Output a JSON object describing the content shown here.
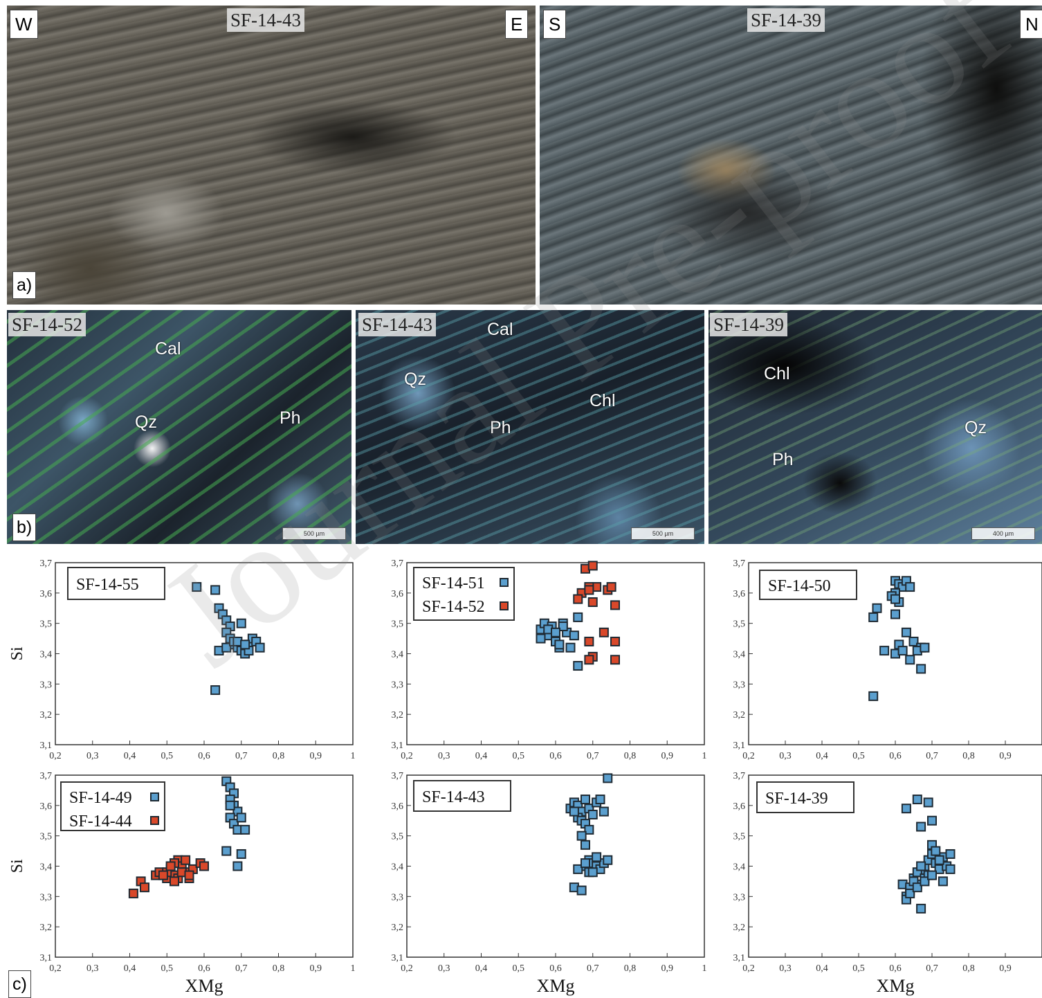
{
  "panel_a": {
    "letter": "a)",
    "left": {
      "sample": "SF-14-43",
      "west": "W",
      "east": "E"
    },
    "right": {
      "sample": "SF-14-39",
      "south": "S",
      "north": "N"
    }
  },
  "panel_b": {
    "letter": "b)",
    "sections": [
      {
        "sample": "SF-14-52",
        "minerals": [
          "Cal",
          "Qz",
          "Ph"
        ],
        "scale": "500 µm"
      },
      {
        "sample": "SF-14-43",
        "minerals": [
          "Cal",
          "Qz",
          "Ph",
          "Chl"
        ],
        "scale": "500 µm"
      },
      {
        "sample": "SF-14-39",
        "minerals": [
          "Chl",
          "Ph",
          "Qz"
        ],
        "scale": "400 µm"
      }
    ]
  },
  "panel_c": {
    "letter": "c)"
  },
  "watermark": "Journal Pre-proof",
  "colors": {
    "blue_marker": "#5b9fce",
    "red_marker": "#d9482a",
    "marker_edge": "#1f2a33"
  },
  "chart_data": [
    {
      "type": "scatter",
      "xlabel": "",
      "ylabel": "Si",
      "xlim": [
        0.2,
        1
      ],
      "ylim": [
        3.1,
        3.7
      ],
      "xticks": [
        "0,2",
        "0,3",
        "0,4",
        "0,5",
        "0,6",
        "0,7",
        "0,8",
        "0,9",
        "1"
      ],
      "yticks": [
        "3,1",
        "3,2",
        "3,3",
        "3,4",
        "3,5",
        "3,6",
        "3,7"
      ],
      "series": [
        {
          "name": "SF-14-55",
          "color": "blue",
          "x": [
            0.58,
            0.63,
            0.64,
            0.65,
            0.66,
            0.67,
            0.66,
            0.67,
            0.68,
            0.69,
            0.7,
            0.71,
            0.72,
            0.73,
            0.74,
            0.75,
            0.64,
            0.66,
            0.68,
            0.7,
            0.72,
            0.63,
            0.69,
            0.71
          ],
          "y": [
            3.62,
            3.61,
            3.55,
            3.53,
            3.51,
            3.49,
            3.47,
            3.45,
            3.43,
            3.42,
            3.41,
            3.4,
            3.43,
            3.45,
            3.44,
            3.42,
            3.41,
            3.42,
            3.44,
            3.5,
            3.41,
            3.28,
            3.44,
            3.43
          ]
        }
      ]
    },
    {
      "type": "scatter",
      "xlabel": "",
      "ylabel": "",
      "xlim": [
        0.2,
        1
      ],
      "ylim": [
        3.1,
        3.7
      ],
      "xticks": [
        "0,2",
        "0,3",
        "0,4",
        "0,5",
        "0,6",
        "0,7",
        "0,8",
        "0,9",
        "1"
      ],
      "yticks": [
        "3,1",
        "3,2",
        "3,3",
        "3,4",
        "3,5",
        "3,6",
        "3,7"
      ],
      "series": [
        {
          "name": "SF-14-51",
          "color": "blue",
          "x": [
            0.56,
            0.57,
            0.58,
            0.59,
            0.6,
            0.61,
            0.62,
            0.63,
            0.64,
            0.65,
            0.66,
            0.56,
            0.58,
            0.61,
            0.62,
            0.6,
            0.66
          ],
          "y": [
            3.48,
            3.5,
            3.46,
            3.49,
            3.44,
            3.42,
            3.5,
            3.47,
            3.42,
            3.46,
            3.52,
            3.45,
            3.48,
            3.43,
            3.49,
            3.47,
            3.36
          ]
        },
        {
          "name": "SF-14-52",
          "color": "red",
          "x": [
            0.68,
            0.7,
            0.71,
            0.69,
            0.67,
            0.66,
            0.69,
            0.7,
            0.74,
            0.75,
            0.76,
            0.73,
            0.69,
            0.7,
            0.76,
            0.76,
            0.69
          ],
          "y": [
            3.68,
            3.69,
            3.62,
            3.62,
            3.6,
            3.58,
            3.61,
            3.57,
            3.61,
            3.62,
            3.56,
            3.47,
            3.44,
            3.39,
            3.44,
            3.38,
            3.38
          ]
        }
      ]
    },
    {
      "type": "scatter",
      "xlabel": "",
      "ylabel": "",
      "xlim": [
        0.2,
        1
      ],
      "ylim": [
        3.1,
        3.7
      ],
      "xticks": [
        "0,2",
        "0,3",
        "0,4",
        "0,5",
        "0,6",
        "0,7",
        "0,8",
        "0,9"
      ],
      "yticks": [
        "3,1",
        "3,2",
        "3,3",
        "3,4",
        "3,5",
        "3,6",
        "3,7"
      ],
      "series": [
        {
          "name": "SF-14-50",
          "color": "blue",
          "x": [
            0.6,
            0.61,
            0.62,
            0.63,
            0.64,
            0.6,
            0.59,
            0.61,
            0.6,
            0.55,
            0.54,
            0.63,
            0.65,
            0.67,
            0.66,
            0.68,
            0.61,
            0.6,
            0.57,
            0.64,
            0.67,
            0.54,
            0.62,
            0.6
          ],
          "y": [
            3.64,
            3.63,
            3.62,
            3.64,
            3.62,
            3.6,
            3.59,
            3.57,
            3.53,
            3.55,
            3.52,
            3.47,
            3.44,
            3.42,
            3.41,
            3.42,
            3.43,
            3.4,
            3.41,
            3.38,
            3.35,
            3.26,
            3.41,
            3.58
          ]
        }
      ]
    },
    {
      "type": "scatter",
      "xlabel": "XMg",
      "ylabel": "Si",
      "xlim": [
        0.2,
        1
      ],
      "ylim": [
        3.1,
        3.7
      ],
      "xticks": [
        "0,2",
        "0,3",
        "0,4",
        "0,5",
        "0,6",
        "0,7",
        "0,8",
        "0,9",
        "1"
      ],
      "yticks": [
        "3,1",
        "3,2",
        "3,3",
        "3,4",
        "3,5",
        "3,6",
        "3,7"
      ],
      "series": [
        {
          "name": "SF-14-49",
          "color": "blue",
          "x": [
            0.66,
            0.67,
            0.68,
            0.67,
            0.68,
            0.69,
            0.67,
            0.68,
            0.69,
            0.7,
            0.67,
            0.66,
            0.7,
            0.71,
            0.69
          ],
          "y": [
            3.68,
            3.66,
            3.64,
            3.62,
            3.6,
            3.58,
            3.56,
            3.54,
            3.52,
            3.56,
            3.6,
            3.45,
            3.44,
            3.52,
            3.4
          ]
        },
        {
          "name": "SF-14-44",
          "color": "red",
          "x": [
            0.41,
            0.43,
            0.44,
            0.47,
            0.48,
            0.5,
            0.51,
            0.52,
            0.53,
            0.54,
            0.55,
            0.56,
            0.5,
            0.52,
            0.53,
            0.55,
            0.57,
            0.59,
            0.6,
            0.49,
            0.51,
            0.54,
            0.56,
            0.52
          ],
          "y": [
            3.31,
            3.35,
            3.33,
            3.37,
            3.38,
            3.36,
            3.39,
            3.37,
            3.42,
            3.4,
            3.38,
            3.36,
            3.38,
            3.41,
            3.36,
            3.42,
            3.39,
            3.41,
            3.4,
            3.37,
            3.4,
            3.38,
            3.37,
            3.35
          ]
        }
      ]
    },
    {
      "type": "scatter",
      "xlabel": "XMg",
      "ylabel": "",
      "xlim": [
        0.2,
        1
      ],
      "ylim": [
        3.1,
        3.7
      ],
      "xticks": [
        "0,2",
        "0,3",
        "0,4",
        "0,5",
        "0,6",
        "0,7",
        "0,8",
        "0,9",
        "1"
      ],
      "yticks": [
        "3,1",
        "3,2",
        "3,3",
        "3,4",
        "3,5",
        "3,6",
        "3,7"
      ],
      "series": [
        {
          "name": "SF-14-43",
          "color": "blue",
          "x": [
            0.64,
            0.65,
            0.66,
            0.67,
            0.68,
            0.69,
            0.7,
            0.71,
            0.72,
            0.73,
            0.66,
            0.67,
            0.68,
            0.69,
            0.65,
            0.67,
            0.68,
            0.69,
            0.7,
            0.71,
            0.72,
            0.73,
            0.74,
            0.68,
            0.69,
            0.7,
            0.66,
            0.65,
            0.67,
            0.68,
            0.74,
            0.71
          ],
          "y": [
            3.59,
            3.61,
            3.6,
            3.58,
            3.62,
            3.59,
            3.57,
            3.61,
            3.62,
            3.58,
            3.56,
            3.55,
            3.54,
            3.52,
            3.58,
            3.5,
            3.47,
            3.42,
            3.41,
            3.4,
            3.39,
            3.41,
            3.42,
            3.4,
            3.38,
            3.38,
            3.39,
            3.33,
            3.32,
            3.41,
            3.69,
            3.43
          ]
        }
      ]
    },
    {
      "type": "scatter",
      "xlabel": "XMg",
      "ylabel": "",
      "xlim": [
        0.2,
        1
      ],
      "ylim": [
        3.1,
        3.7
      ],
      "xticks": [
        "0,2",
        "0,3",
        "0,4",
        "0,5",
        "0,6",
        "0,7",
        "0,8",
        "0,9"
      ],
      "yticks": [
        "3,1",
        "3,2",
        "3,3",
        "3,4",
        "3,5",
        "3,6",
        "3,7"
      ],
      "series": [
        {
          "name": "SF-14-39",
          "color": "blue",
          "x": [
            0.63,
            0.66,
            0.69,
            0.7,
            0.67,
            0.62,
            0.63,
            0.64,
            0.65,
            0.66,
            0.67,
            0.68,
            0.69,
            0.7,
            0.71,
            0.72,
            0.73,
            0.74,
            0.75,
            0.64,
            0.65,
            0.66,
            0.67,
            0.68,
            0.69,
            0.7,
            0.71,
            0.72,
            0.63,
            0.64,
            0.66,
            0.68,
            0.7,
            0.73,
            0.75,
            0.67
          ],
          "y": [
            3.59,
            3.62,
            3.61,
            3.55,
            3.53,
            3.34,
            3.3,
            3.32,
            3.36,
            3.34,
            3.38,
            3.4,
            3.42,
            3.44,
            3.41,
            3.39,
            3.43,
            3.4,
            3.44,
            3.33,
            3.35,
            3.38,
            3.4,
            3.36,
            3.37,
            3.47,
            3.45,
            3.42,
            3.29,
            3.31,
            3.33,
            3.35,
            3.37,
            3.35,
            3.39,
            3.26
          ]
        }
      ]
    }
  ]
}
